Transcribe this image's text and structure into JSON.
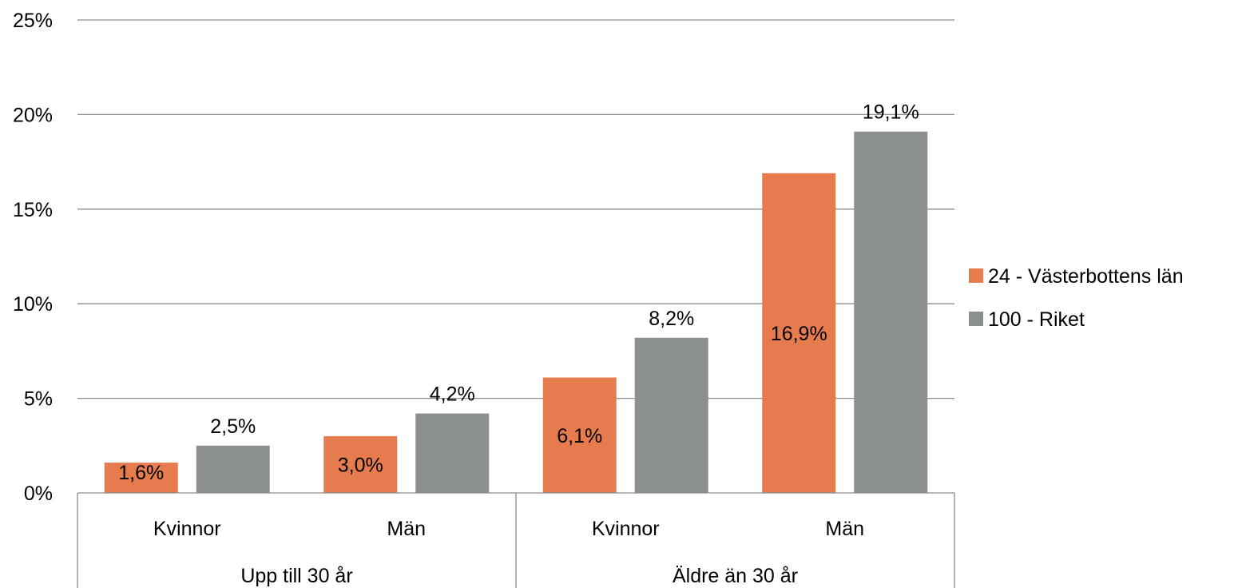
{
  "chart_data": {
    "type": "bar",
    "title": "",
    "xlabel": "",
    "ylabel": "",
    "ylim": [
      0,
      25
    ],
    "yticks": [
      0,
      5,
      10,
      15,
      20,
      25
    ],
    "ytick_labels": [
      "0%",
      "5%",
      "10%",
      "15%",
      "20%",
      "25%"
    ],
    "grid": true,
    "legend_position": "right",
    "groups": [
      {
        "label": "Upp till 30 år",
        "categories": [
          "Kvinnor",
          "Män"
        ]
      },
      {
        "label": "Äldre än 30 år",
        "categories": [
          "Kvinnor",
          "Män"
        ]
      }
    ],
    "categories": [
      "Kvinnor",
      "Män",
      "Kvinnor",
      "Män"
    ],
    "series": [
      {
        "name": "24 - Västerbottens län",
        "color": "#E67C4E",
        "values": [
          1.6,
          3.0,
          6.1,
          16.9
        ],
        "labels": [
          "1,6%",
          "3,0%",
          "6,1%",
          "16,9%"
        ],
        "label_position": "inside"
      },
      {
        "name": "100 - Riket",
        "color": "#8B908E",
        "values": [
          2.5,
          4.2,
          8.2,
          19.1
        ],
        "labels": [
          "2,5%",
          "4,2%",
          "8,2%",
          "19,1%"
        ],
        "label_position": "above"
      }
    ]
  }
}
